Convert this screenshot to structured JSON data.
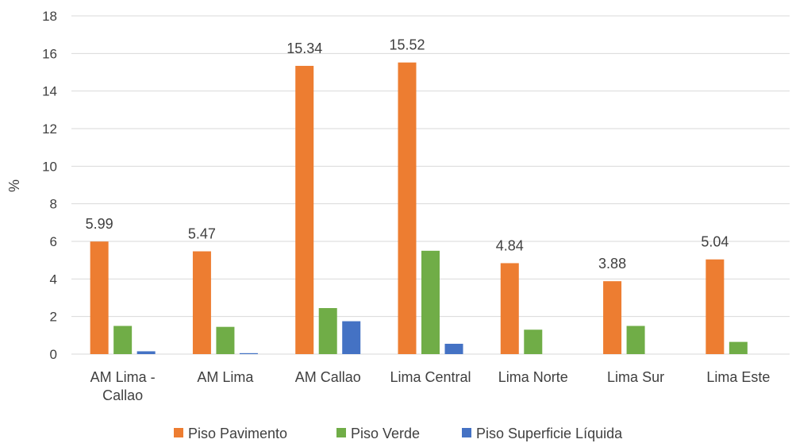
{
  "chart_data": {
    "type": "bar",
    "title": "",
    "xlabel": "",
    "ylabel": "%",
    "ylim": [
      0,
      18
    ],
    "yticks": [
      "0",
      "2",
      "4",
      "6",
      "8",
      "10",
      "12",
      "14",
      "16",
      "18"
    ],
    "grid": true,
    "legend_position": "bottom",
    "categories": [
      [
        "AM Lima -",
        "Callao"
      ],
      [
        "AM Lima"
      ],
      [
        "AM Callao"
      ],
      [
        "Lima Central"
      ],
      [
        "Lima Norte"
      ],
      [
        "Lima Sur"
      ],
      [
        "Lima Este"
      ]
    ],
    "series": [
      {
        "name": "Piso Pavimento",
        "color": "#ED7D31",
        "values": [
          5.99,
          5.47,
          15.34,
          15.52,
          4.84,
          3.88,
          5.04
        ],
        "data_labels": [
          "5.99",
          "5.47",
          "15.34",
          "15.52",
          "4.84",
          "3.88",
          "5.04"
        ]
      },
      {
        "name": "Piso Verde",
        "color": "#70AD47",
        "values": [
          1.5,
          1.45,
          2.45,
          5.5,
          1.3,
          1.5,
          0.65
        ]
      },
      {
        "name": "Piso Superficie Líquida",
        "color": "#4472C4",
        "values": [
          0.15,
          0.05,
          1.75,
          0.55,
          0,
          0,
          0
        ]
      }
    ]
  }
}
